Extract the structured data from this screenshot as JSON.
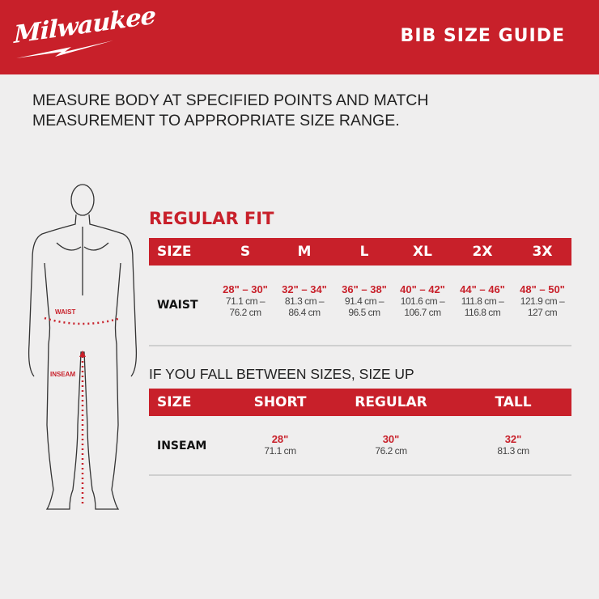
{
  "header": {
    "logo": "Milwaukee",
    "title": "BIB SIZE GUIDE",
    "brand_color": "#c8202a"
  },
  "instructions": "MEASURE BODY AT SPECIFIED POINTS AND MATCH MEASUREMENT TO APPROPRIATE SIZE RANGE.",
  "figure": {
    "waist_label": "WAIST",
    "inseam_label": "INSEAM"
  },
  "regular_fit": {
    "heading": "REGULAR FIT",
    "columns": [
      "SIZE",
      "S",
      "M",
      "L",
      "XL",
      "2X",
      "3X"
    ],
    "row_label": "WAIST",
    "cells": [
      {
        "in": "28\" – 30\"",
        "cm1": "71.1 cm –",
        "cm2": "76.2 cm"
      },
      {
        "in": "32\" – 34\"",
        "cm1": "81.3 cm –",
        "cm2": "86.4 cm"
      },
      {
        "in": "36\" – 38\"",
        "cm1": "91.4 cm –",
        "cm2": "96.5 cm"
      },
      {
        "in": "40\" – 42\"",
        "cm1": "101.6 cm –",
        "cm2": "106.7 cm"
      },
      {
        "in": "44\" – 46\"",
        "cm1": "111.8 cm –",
        "cm2": "116.8 cm"
      },
      {
        "in": "48\" – 50\"",
        "cm1": "121.9 cm –",
        "cm2": "127 cm"
      }
    ]
  },
  "inseam": {
    "note": "IF YOU FALL BETWEEN SIZES, SIZE UP",
    "columns": [
      "SIZE",
      "SHORT",
      "REGULAR",
      "TALL"
    ],
    "row_label": "INSEAM",
    "cells": [
      {
        "in": "28\"",
        "cm": "71.1 cm"
      },
      {
        "in": "30\"",
        "cm": "76.2 cm"
      },
      {
        "in": "32\"",
        "cm": "81.3 cm"
      }
    ]
  }
}
